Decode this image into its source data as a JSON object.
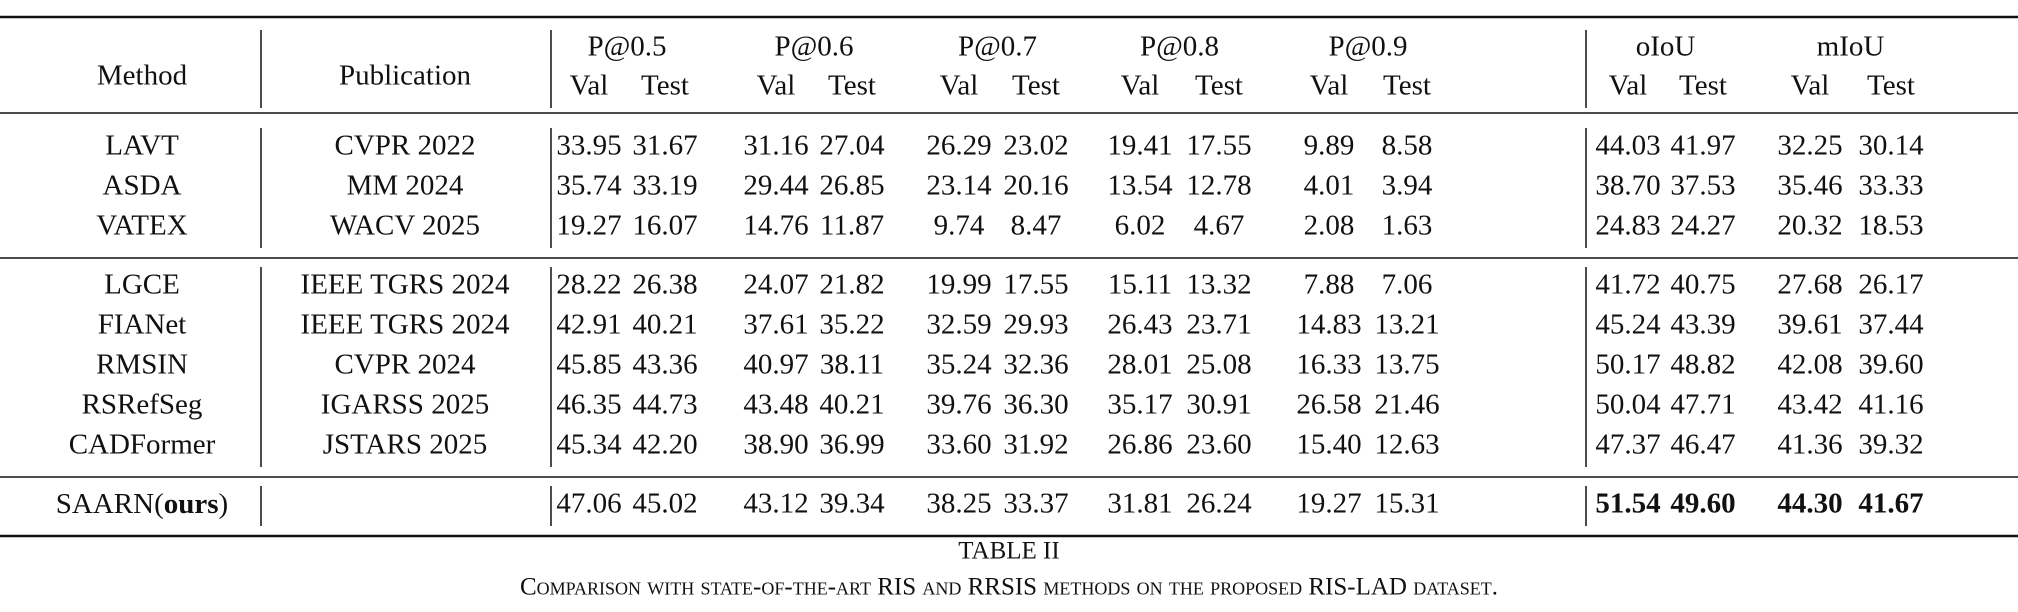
{
  "table": {
    "header": {
      "method": "Method",
      "publication": "Publication",
      "groups": [
        "P@0.5",
        "P@0.6",
        "P@0.7",
        "P@0.8",
        "P@0.9",
        "oIoU",
        "mIoU"
      ],
      "subheaders": [
        "Val",
        "Test",
        "Val",
        "Test",
        "Val",
        "Test",
        "Val",
        "Test",
        "Val",
        "Test",
        "Val",
        "Test",
        "Val",
        "Test"
      ]
    },
    "sections": [
      {
        "rows": [
          {
            "method": "LAVT",
            "publication": "CVPR 2022",
            "values": [
              "33.95",
              "31.67",
              "31.16",
              "27.04",
              "26.29",
              "23.02",
              "19.41",
              "17.55",
              "9.89",
              "8.58",
              "44.03",
              "41.97",
              "32.25",
              "30.14"
            ]
          },
          {
            "method": "ASDA",
            "publication": "MM 2024",
            "values": [
              "35.74",
              "33.19",
              "29.44",
              "26.85",
              "23.14",
              "20.16",
              "13.54",
              "12.78",
              "4.01",
              "3.94",
              "38.70",
              "37.53",
              "35.46",
              "33.33"
            ]
          },
          {
            "method": "VATEX",
            "publication": "WACV 2025",
            "values": [
              "19.27",
              "16.07",
              "14.76",
              "11.87",
              "9.74",
              "8.47",
              "6.02",
              "4.67",
              "2.08",
              "1.63",
              "24.83",
              "24.27",
              "20.32",
              "18.53"
            ]
          }
        ]
      },
      {
        "rows": [
          {
            "method": "LGCE",
            "publication": "IEEE TGRS 2024",
            "values": [
              "28.22",
              "26.38",
              "24.07",
              "21.82",
              "19.99",
              "17.55",
              "15.11",
              "13.32",
              "7.88",
              "7.06",
              "41.72",
              "40.75",
              "27.68",
              "26.17"
            ]
          },
          {
            "method": "FIANet",
            "publication": "IEEE TGRS 2024",
            "values": [
              "42.91",
              "40.21",
              "37.61",
              "35.22",
              "32.59",
              "29.93",
              "26.43",
              "23.71",
              "14.83",
              "13.21",
              "45.24",
              "43.39",
              "39.61",
              "37.44"
            ]
          },
          {
            "method": "RMSIN",
            "publication": "CVPR 2024",
            "values": [
              "45.85",
              "43.36",
              "40.97",
              "38.11",
              "35.24",
              "32.36",
              "28.01",
              "25.08",
              "16.33",
              "13.75",
              "50.17",
              "48.82",
              "42.08",
              "39.60"
            ]
          },
          {
            "method": "RSRefSeg",
            "publication": "IGARSS 2025",
            "values": [
              "46.35",
              "44.73",
              "43.48",
              "40.21",
              "39.76",
              "36.30",
              "35.17",
              "30.91",
              "26.58",
              "21.46",
              "50.04",
              "47.71",
              "43.42",
              "41.16"
            ]
          },
          {
            "method": "CADFormer",
            "publication": "JSTARS 2025",
            "values": [
              "45.34",
              "42.20",
              "38.90",
              "36.99",
              "33.60",
              "31.92",
              "26.86",
              "23.60",
              "15.40",
              "12.63",
              "47.37",
              "46.47",
              "41.36",
              "39.32"
            ]
          }
        ]
      },
      {
        "rows": [
          {
            "method_segments": [
              {
                "text": "SAARN("
              },
              {
                "text": "ours",
                "bold": true
              },
              {
                "text": ")"
              }
            ],
            "values": [
              "47.06",
              "45.02",
              "43.12",
              "39.34",
              "38.25",
              "33.37",
              "31.81",
              "26.24",
              "19.27",
              "15.31",
              "51.54",
              "49.60",
              "44.30",
              "41.67"
            ],
            "bold_columns": [
              10,
              11,
              12,
              13
            ]
          }
        ]
      }
    ],
    "caption": {
      "label": "TABLE II",
      "text": "Comparison with state-of-the-art RIS and RRSIS methods on the proposed RIS-LAD dataset."
    }
  }
}
